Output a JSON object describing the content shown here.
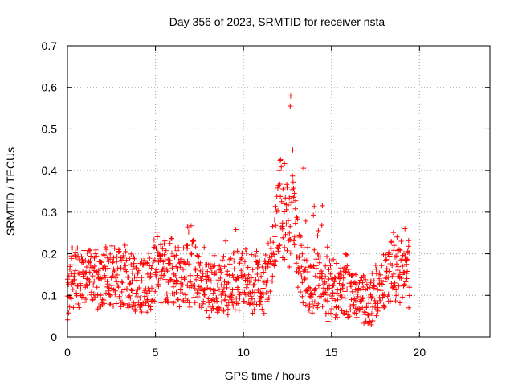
{
  "chart_data": {
    "type": "scatter",
    "title": "Day 356 of 2023, SRMTID for receiver nsta",
    "xlabel": "GPS time / hours",
    "ylabel": "SRMTID / TECUs",
    "xlim": [
      0,
      24
    ],
    "ylim": [
      0,
      0.7
    ],
    "xticks": [
      0,
      5,
      10,
      15,
      20
    ],
    "xtick_labels": [
      "0",
      "5",
      "10",
      "15",
      "20"
    ],
    "yticks": [
      0,
      0.1,
      0.2,
      0.3,
      0.4,
      0.5,
      0.6,
      0.7
    ],
    "ytick_labels": [
      "0",
      "0.1",
      "0.2",
      "0.3",
      "0.4",
      "0.5",
      "0.6",
      "0.7"
    ],
    "grid": true,
    "marker": "plus",
    "marker_color": "#ff0000",
    "series": [
      {
        "name": "nsta",
        "x_start": 0.0,
        "x_step": 0.05,
        "note": "approximate median level read off the plot, one value per 0.05 h",
        "y_level_approx": [
          0.08,
          0.09,
          0.1,
          0.12,
          0.13,
          0.14,
          0.15,
          0.14,
          0.13,
          0.14,
          0.15,
          0.16,
          0.15,
          0.14,
          0.13,
          0.14,
          0.15,
          0.16,
          0.15,
          0.14,
          0.15,
          0.16,
          0.15,
          0.14,
          0.15,
          0.16,
          0.15,
          0.14,
          0.13,
          0.15,
          0.16,
          0.15,
          0.14,
          0.13,
          0.12,
          0.13,
          0.14,
          0.15,
          0.14,
          0.13,
          0.12,
          0.14,
          0.15,
          0.16,
          0.15,
          0.14,
          0.13,
          0.12,
          0.13,
          0.15,
          0.16,
          0.15,
          0.14,
          0.13,
          0.12,
          0.13,
          0.14,
          0.15,
          0.16,
          0.15,
          0.14,
          0.13,
          0.12,
          0.13,
          0.14,
          0.15,
          0.14,
          0.13,
          0.12,
          0.13,
          0.14,
          0.15,
          0.14,
          0.13,
          0.14,
          0.15,
          0.14,
          0.13,
          0.12,
          0.13,
          0.14,
          0.15,
          0.14,
          0.13,
          0.12,
          0.13,
          0.14,
          0.15,
          0.14,
          0.13,
          0.12,
          0.13,
          0.14,
          0.15,
          0.14,
          0.13,
          0.14,
          0.15,
          0.16,
          0.15,
          0.14,
          0.15,
          0.17,
          0.19,
          0.18,
          0.17,
          0.16,
          0.15,
          0.16,
          0.17,
          0.18,
          0.17,
          0.16,
          0.15,
          0.14,
          0.15,
          0.17,
          0.18,
          0.17,
          0.16,
          0.15,
          0.14,
          0.15,
          0.16,
          0.17,
          0.16,
          0.15,
          0.14,
          0.15,
          0.16,
          0.17,
          0.16,
          0.15,
          0.14,
          0.15,
          0.16,
          0.17,
          0.16,
          0.15,
          0.14,
          0.15,
          0.16,
          0.17,
          0.16,
          0.15,
          0.14,
          0.15,
          0.17,
          0.16,
          0.15,
          0.14,
          0.13,
          0.12,
          0.11,
          0.12,
          0.13,
          0.12,
          0.11,
          0.12,
          0.13,
          0.12,
          0.11,
          0.12,
          0.13,
          0.12,
          0.11,
          0.12,
          0.13,
          0.12,
          0.11,
          0.12,
          0.13,
          0.12,
          0.11,
          0.12,
          0.13,
          0.14,
          0.13,
          0.12,
          0.13,
          0.14,
          0.13,
          0.12,
          0.13,
          0.14,
          0.13,
          0.12,
          0.13,
          0.14,
          0.15,
          0.14,
          0.13,
          0.14,
          0.15,
          0.14,
          0.13,
          0.12,
          0.13,
          0.14,
          0.15,
          0.14,
          0.13,
          0.14,
          0.15,
          0.14,
          0.13,
          0.12,
          0.13,
          0.14,
          0.13,
          0.12,
          0.13,
          0.12,
          0.13,
          0.14,
          0.15,
          0.14,
          0.13,
          0.12,
          0.13,
          0.14,
          0.13,
          0.12,
          0.11,
          0.12,
          0.13,
          0.14,
          0.15,
          0.16,
          0.17,
          0.16,
          0.15,
          0.17,
          0.19,
          0.21,
          0.22,
          0.23,
          0.25,
          0.27,
          0.28,
          0.3,
          0.32,
          0.33,
          0.32,
          0.3,
          0.28,
          0.27,
          0.28,
          0.3,
          0.28,
          0.27,
          0.26,
          0.25,
          0.26,
          0.27,
          0.28,
          0.3,
          0.28,
          0.26,
          0.24,
          0.22,
          0.21,
          0.2,
          0.19,
          0.18,
          0.17,
          0.16,
          0.15,
          0.14,
          0.13,
          0.14,
          0.13,
          0.12,
          0.11,
          0.12,
          0.13,
          0.12,
          0.11,
          0.12,
          0.13,
          0.14,
          0.13,
          0.12,
          0.13,
          0.14,
          0.13,
          0.12,
          0.13,
          0.14,
          0.13,
          0.12,
          0.11,
          0.12,
          0.13,
          0.12,
          0.11,
          0.1,
          0.11,
          0.12,
          0.11,
          0.1,
          0.11,
          0.12,
          0.11,
          0.1,
          0.11,
          0.12,
          0.11,
          0.1,
          0.11,
          0.12,
          0.11,
          0.1,
          0.11,
          0.12,
          0.11,
          0.1,
          0.11,
          0.12,
          0.11,
          0.1,
          0.11,
          0.12,
          0.11,
          0.1,
          0.11,
          0.12,
          0.11,
          0.1,
          0.09,
          0.1,
          0.11,
          0.1,
          0.09,
          0.1,
          0.11,
          0.1,
          0.09,
          0.1,
          0.09,
          0.08,
          0.09,
          0.1,
          0.09,
          0.08,
          0.09,
          0.1,
          0.09,
          0.08,
          0.09,
          0.1,
          0.11,
          0.12,
          0.11,
          0.12,
          0.13,
          0.12,
          0.11,
          0.12,
          0.13,
          0.14,
          0.13,
          0.14,
          0.15,
          0.16,
          0.15,
          0.14,
          0.15,
          0.16,
          0.17,
          0.18,
          0.16,
          0.15,
          0.14,
          0.15,
          0.16,
          0.15,
          0.14,
          0.15,
          0.16,
          0.15,
          0.14,
          0.15,
          0.14,
          0.13,
          0.14,
          0.15,
          0.14,
          0.13,
          0.14
        ]
      }
    ]
  }
}
